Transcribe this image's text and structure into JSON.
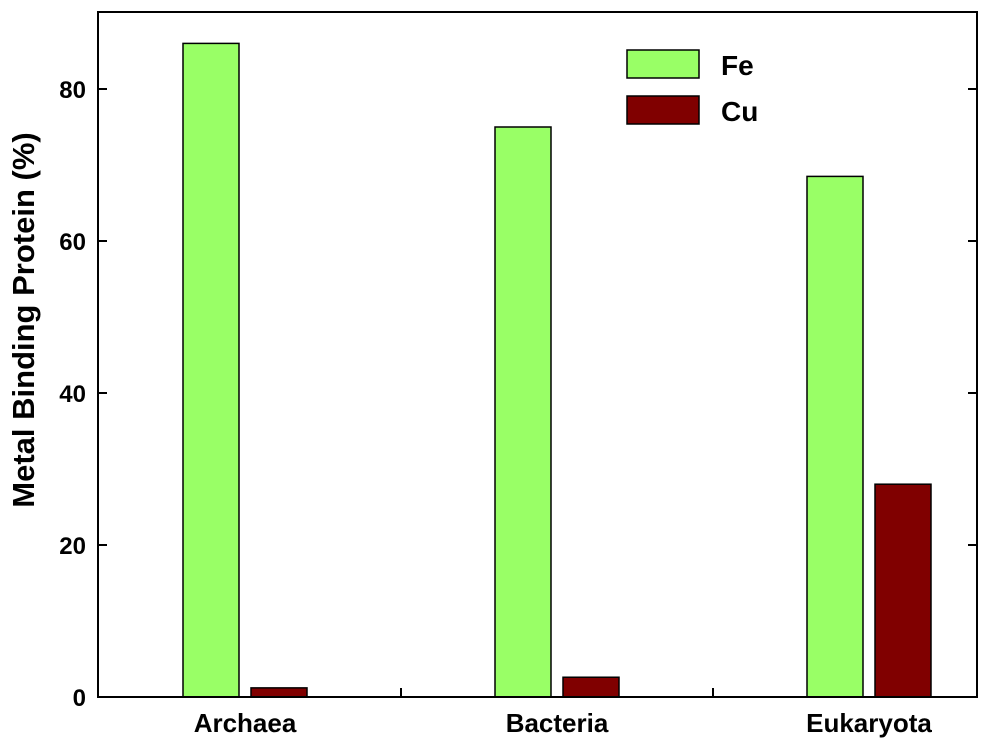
{
  "chart_data": {
    "type": "bar",
    "categories": [
      "Archaea",
      "Bacteria",
      "Eukaryota"
    ],
    "series": [
      {
        "name": "Fe",
        "values": [
          86,
          75,
          68.5
        ],
        "color": "#99ff66"
      },
      {
        "name": "Cu",
        "values": [
          1.2,
          2.6,
          28
        ],
        "color": "#800000"
      }
    ],
    "title": "",
    "xlabel": "",
    "ylabel": "Metal Binding Protein (%)",
    "ylim": [
      0,
      90
    ],
    "yticks": [
      0,
      20,
      40,
      60,
      80
    ],
    "grid": false,
    "legend_position": "top-right"
  }
}
